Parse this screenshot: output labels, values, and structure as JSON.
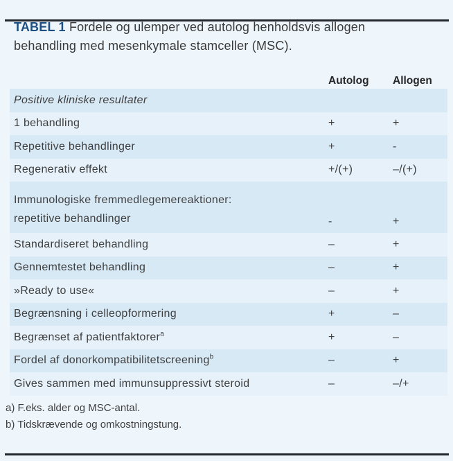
{
  "title": {
    "tag": "TABEL 1",
    "text": " Fordele og ulemper ved autolog henholdsvis allogen behandling med mesenkymale stamceller (MSC)."
  },
  "columns": {
    "autolog": "Autolog",
    "allogen": "Allogen"
  },
  "table": {
    "rows": [
      {
        "label": "Positive kliniske resultater",
        "autolog": "",
        "allogen": ""
      },
      {
        "label": "1 behandling",
        "autolog": "+",
        "allogen": "+"
      },
      {
        "label": "Repetitive behandlinger",
        "autolog": "+",
        "allogen": "-"
      },
      {
        "label": "Regenerativ effekt",
        "autolog": "+/(+)",
        "allogen": "–/(+)"
      },
      {
        "label": "Immunologiske fremmedlegemereaktioner:",
        "label2": "repetitive behandlinger",
        "autolog": "-",
        "allogen": "+"
      },
      {
        "label": "Standardiseret behandling",
        "autolog": "–",
        "allogen": "+"
      },
      {
        "label": "Gennemtestet behandling",
        "autolog": "–",
        "allogen": "+"
      },
      {
        "label": "»Ready to use«",
        "autolog": "–",
        "allogen": "+"
      },
      {
        "label": "Begrænsning i celleopformering",
        "autolog": "+",
        "allogen": "–"
      },
      {
        "label": "Begrænset af patientfaktorer",
        "sup": "a",
        "autolog": "+",
        "allogen": "–"
      },
      {
        "label": "Fordel af donorkompatibilitetscreening",
        "sup": "b",
        "autolog": "–",
        "allogen": "+"
      },
      {
        "label": "Gives sammen med immunsuppressivt steroid",
        "autolog": "–",
        "allogen": "–/+"
      }
    ]
  },
  "footnotes": [
    "a) F.eks. alder og MSC-antal.",
    "b) Tidskrævende og omkostningstung."
  ],
  "colors": {
    "background": "#eef6fc",
    "stripe_dark": "#d8e9f6",
    "stripe_light": "#e6f1fa",
    "accent_blue": "#1d4e81",
    "rule": "#23272d",
    "text": "#3e3e3e"
  }
}
